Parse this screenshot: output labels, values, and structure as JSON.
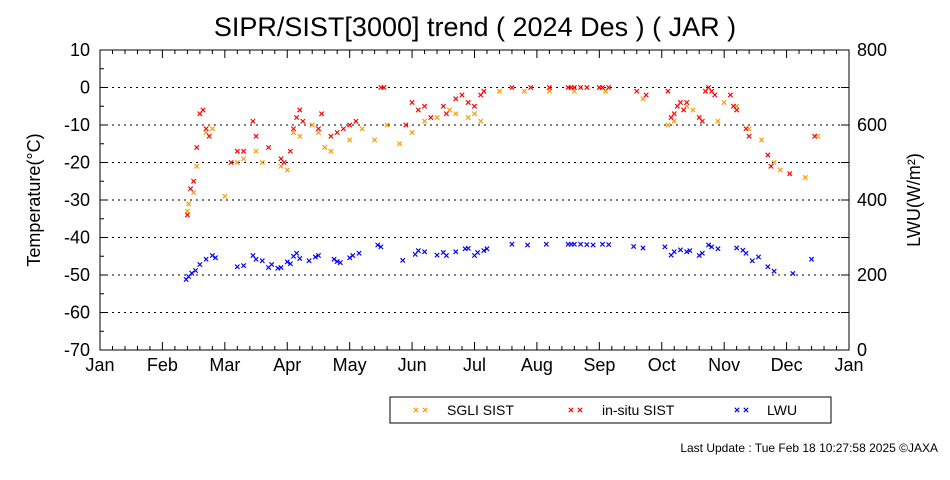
{
  "chart_data": {
    "type": "scatter",
    "title": "SIPR/SIST[3000] trend ( 2024 Des ) ( JAR )",
    "ylabel": "Temperature(°C)",
    "y2label": "LWU(W/m²)",
    "ylim": [
      -70,
      10
    ],
    "y2lim": [
      0,
      800
    ],
    "yticks": [
      "10",
      "0",
      "-10",
      "-20",
      "-30",
      "-40",
      "-50",
      "-60",
      "-70"
    ],
    "y2ticks": [
      "800",
      "600",
      "400",
      "200",
      "0"
    ],
    "xticks": [
      "Jan",
      "Feb",
      "Mar",
      "Apr",
      "May",
      "Jun",
      "Jul",
      "Aug",
      "Sep",
      "Oct",
      "Nov",
      "Dec",
      "Jan"
    ],
    "grid": "dotted horizontal",
    "legend": [
      "SGLI SIST",
      "in-situ SIST",
      "LWU"
    ],
    "colors": {
      "sgli": "#ff9900",
      "insitu": "#ff0000",
      "lwu": "#0000ff"
    },
    "series": [
      {
        "name": "SGLI SIST",
        "axis": "left",
        "points": [
          [
            1.4,
            -33
          ],
          [
            1.42,
            -31
          ],
          [
            1.5,
            -28
          ],
          [
            1.55,
            -21
          ],
          [
            1.7,
            -12
          ],
          [
            1.8,
            -11
          ],
          [
            2.0,
            -29
          ],
          [
            2.2,
            -20
          ],
          [
            2.3,
            -19
          ],
          [
            2.5,
            -17
          ],
          [
            2.6,
            -20
          ],
          [
            2.9,
            -21
          ],
          [
            3.0,
            -22
          ],
          [
            3.1,
            -12
          ],
          [
            3.2,
            -13
          ],
          [
            3.4,
            -10
          ],
          [
            3.5,
            -12
          ],
          [
            3.6,
            -16
          ],
          [
            3.7,
            -17
          ],
          [
            4.0,
            -14
          ],
          [
            4.2,
            -11
          ],
          [
            4.4,
            -14
          ],
          [
            4.6,
            -10
          ],
          [
            4.8,
            -15
          ],
          [
            5.0,
            -12
          ],
          [
            5.2,
            -9
          ],
          [
            5.4,
            -8
          ],
          [
            5.6,
            -6
          ],
          [
            5.7,
            -7
          ],
          [
            5.9,
            -8
          ],
          [
            6.0,
            -7
          ],
          [
            6.1,
            -9
          ],
          [
            6.4,
            -1
          ],
          [
            6.8,
            -1
          ],
          [
            7.2,
            -1
          ],
          [
            7.6,
            -1
          ],
          [
            8.1,
            -1
          ],
          [
            8.7,
            -3
          ],
          [
            9.1,
            -10
          ],
          [
            9.2,
            -9
          ],
          [
            9.4,
            -5
          ],
          [
            9.5,
            -6
          ],
          [
            9.9,
            -9
          ],
          [
            10.0,
            -4
          ],
          [
            10.2,
            -5
          ],
          [
            10.4,
            -11
          ],
          [
            10.6,
            -14
          ],
          [
            10.8,
            -20
          ],
          [
            10.9,
            -22
          ],
          [
            11.3,
            -24
          ],
          [
            11.5,
            -13
          ]
        ]
      },
      {
        "name": "in-situ SIST",
        "axis": "left",
        "points": [
          [
            1.4,
            -34
          ],
          [
            1.45,
            -27
          ],
          [
            1.5,
            -25
          ],
          [
            1.55,
            -16
          ],
          [
            1.6,
            -7
          ],
          [
            1.65,
            -6
          ],
          [
            1.7,
            -11
          ],
          [
            1.75,
            -13
          ],
          [
            2.1,
            -20
          ],
          [
            2.2,
            -17
          ],
          [
            2.3,
            -17
          ],
          [
            2.45,
            -9
          ],
          [
            2.5,
            -13
          ],
          [
            2.7,
            -16
          ],
          [
            2.9,
            -19
          ],
          [
            2.95,
            -20
          ],
          [
            3.05,
            -17
          ],
          [
            3.1,
            -11
          ],
          [
            3.15,
            -8
          ],
          [
            3.2,
            -6
          ],
          [
            3.25,
            -9
          ],
          [
            3.5,
            -11
          ],
          [
            3.55,
            -7
          ],
          [
            3.7,
            -13
          ],
          [
            3.8,
            -12
          ],
          [
            3.9,
            -11
          ],
          [
            4.0,
            -10
          ],
          [
            4.1,
            -9
          ],
          [
            4.5,
            0
          ],
          [
            4.55,
            0
          ],
          [
            4.9,
            -10
          ],
          [
            5.0,
            -4
          ],
          [
            5.1,
            -6
          ],
          [
            5.2,
            -5
          ],
          [
            5.3,
            -8
          ],
          [
            5.5,
            -5
          ],
          [
            5.55,
            -7
          ],
          [
            5.7,
            -3
          ],
          [
            5.8,
            -2
          ],
          [
            5.9,
            -4
          ],
          [
            6.0,
            -5
          ],
          [
            6.1,
            -2
          ],
          [
            6.15,
            -1
          ],
          [
            6.6,
            0
          ],
          [
            6.9,
            0
          ],
          [
            7.2,
            0
          ],
          [
            7.5,
            0
          ],
          [
            7.55,
            0
          ],
          [
            7.6,
            0
          ],
          [
            7.7,
            0
          ],
          [
            7.8,
            0
          ],
          [
            8.0,
            0
          ],
          [
            8.05,
            0
          ],
          [
            8.15,
            0
          ],
          [
            8.6,
            -1
          ],
          [
            8.75,
            -2
          ],
          [
            9.1,
            -1
          ],
          [
            9.15,
            -8
          ],
          [
            9.2,
            -7
          ],
          [
            9.25,
            -5
          ],
          [
            9.3,
            -4
          ],
          [
            9.35,
            -6
          ],
          [
            9.4,
            -4
          ],
          [
            9.6,
            -8
          ],
          [
            9.65,
            -9
          ],
          [
            9.7,
            -1
          ],
          [
            9.75,
            0
          ],
          [
            9.8,
            -1
          ],
          [
            9.85,
            -2
          ],
          [
            10.1,
            -2
          ],
          [
            10.15,
            -5
          ],
          [
            10.2,
            -6
          ],
          [
            10.35,
            -11
          ],
          [
            10.4,
            -13
          ],
          [
            10.7,
            -18
          ],
          [
            10.75,
            -21
          ],
          [
            11.05,
            -23
          ],
          [
            11.45,
            -13
          ]
        ]
      },
      {
        "name": "LWU",
        "axis": "right",
        "points": [
          [
            1.38,
            188
          ],
          [
            1.42,
            196
          ],
          [
            1.47,
            205
          ],
          [
            1.53,
            212
          ],
          [
            1.6,
            228
          ],
          [
            1.7,
            242
          ],
          [
            1.8,
            252
          ],
          [
            1.85,
            246
          ],
          [
            2.2,
            222
          ],
          [
            2.3,
            225
          ],
          [
            2.45,
            252
          ],
          [
            2.5,
            242
          ],
          [
            2.6,
            238
          ],
          [
            2.7,
            220
          ],
          [
            2.75,
            228
          ],
          [
            2.85,
            218
          ],
          [
            2.9,
            220
          ],
          [
            3.0,
            235
          ],
          [
            3.05,
            230
          ],
          [
            3.1,
            250
          ],
          [
            3.15,
            258
          ],
          [
            3.2,
            244
          ],
          [
            3.35,
            238
          ],
          [
            3.45,
            248
          ],
          [
            3.5,
            252
          ],
          [
            3.75,
            242
          ],
          [
            3.8,
            236
          ],
          [
            3.85,
            233
          ],
          [
            4.0,
            246
          ],
          [
            4.05,
            252
          ],
          [
            4.15,
            258
          ],
          [
            4.45,
            280
          ],
          [
            4.5,
            275
          ],
          [
            4.85,
            239
          ],
          [
            5.05,
            255
          ],
          [
            5.1,
            265
          ],
          [
            5.2,
            262
          ],
          [
            5.4,
            253
          ],
          [
            5.5,
            260
          ],
          [
            5.55,
            252
          ],
          [
            5.7,
            262
          ],
          [
            5.85,
            270
          ],
          [
            5.9,
            271
          ],
          [
            6.0,
            252
          ],
          [
            6.05,
            260
          ],
          [
            6.15,
            265
          ],
          [
            6.2,
            270
          ],
          [
            6.6,
            282
          ],
          [
            6.85,
            280
          ],
          [
            7.15,
            282
          ],
          [
            7.5,
            282
          ],
          [
            7.55,
            282
          ],
          [
            7.6,
            282
          ],
          [
            7.7,
            282
          ],
          [
            7.8,
            281
          ],
          [
            7.9,
            280
          ],
          [
            8.05,
            282
          ],
          [
            8.15,
            281
          ],
          [
            8.55,
            276
          ],
          [
            8.7,
            272
          ],
          [
            9.05,
            275
          ],
          [
            9.15,
            253
          ],
          [
            9.2,
            262
          ],
          [
            9.3,
            267
          ],
          [
            9.4,
            262
          ],
          [
            9.45,
            265
          ],
          [
            9.6,
            252
          ],
          [
            9.65,
            258
          ],
          [
            9.75,
            280
          ],
          [
            9.8,
            275
          ],
          [
            9.9,
            270
          ],
          [
            10.2,
            272
          ],
          [
            10.3,
            266
          ],
          [
            10.35,
            258
          ],
          [
            10.45,
            238
          ],
          [
            10.55,
            248
          ],
          [
            10.7,
            222
          ],
          [
            10.8,
            210
          ],
          [
            11.1,
            204
          ],
          [
            11.4,
            242
          ]
        ]
      }
    ]
  },
  "legend_labels": {
    "sgli": "SGLI SIST",
    "insitu": "in-situ SIST",
    "lwu": "LWU"
  },
  "footer": "Last Update : Tue Feb 18 10:27:58 2025  ©JAXA"
}
